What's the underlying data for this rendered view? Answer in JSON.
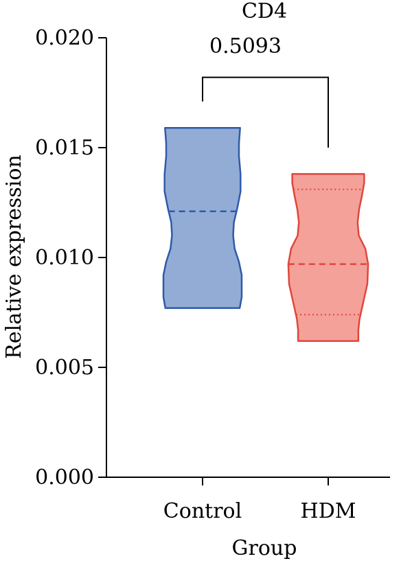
{
  "chart_data": {
    "type": "violin",
    "title": "CD4",
    "xlabel": "Group",
    "ylabel": "Relative expression",
    "ylim": [
      0,
      0.02
    ],
    "yticks": [
      {
        "value": 0.0,
        "label": "0.000"
      },
      {
        "value": 0.005,
        "label": "0.005"
      },
      {
        "value": 0.01,
        "label": "0.010"
      },
      {
        "value": 0.015,
        "label": "0.015"
      },
      {
        "value": 0.02,
        "label": "0.020"
      }
    ],
    "categories": [
      "Control",
      "HDM"
    ],
    "grid": false,
    "series": [
      {
        "category": "Control",
        "fill": "#93acd6",
        "stroke": "#2f5aa8",
        "min": 0.0077,
        "max": 0.0159,
        "median": 0.0121,
        "quartiles": [],
        "profile": [
          [
            0.0077,
            0.95
          ],
          [
            0.0082,
            1.0
          ],
          [
            0.0092,
            1.0
          ],
          [
            0.0098,
            0.93
          ],
          [
            0.0104,
            0.82
          ],
          [
            0.011,
            0.78
          ],
          [
            0.0116,
            0.8
          ],
          [
            0.0122,
            0.88
          ],
          [
            0.013,
            0.97
          ],
          [
            0.0138,
            0.97
          ],
          [
            0.0146,
            0.93
          ],
          [
            0.0152,
            0.93
          ],
          [
            0.0159,
            0.96
          ]
        ]
      },
      {
        "category": "HDM",
        "fill": "#f4a19a",
        "stroke": "#e0463b",
        "min": 0.0062,
        "max": 0.0138,
        "median": 0.0097,
        "quartiles": [
          0.0074,
          0.0131
        ],
        "profile": [
          [
            0.0062,
            0.77
          ],
          [
            0.0067,
            0.77
          ],
          [
            0.0072,
            0.8
          ],
          [
            0.008,
            0.9
          ],
          [
            0.0088,
            1.0
          ],
          [
            0.0097,
            1.02
          ],
          [
            0.0104,
            0.95
          ],
          [
            0.011,
            0.78
          ],
          [
            0.0116,
            0.75
          ],
          [
            0.0122,
            0.79
          ],
          [
            0.0128,
            0.86
          ],
          [
            0.0134,
            0.92
          ],
          [
            0.0138,
            0.92
          ]
        ]
      }
    ],
    "comparison": {
      "groups": [
        "Control",
        "HDM"
      ],
      "label": "0.5093",
      "left_drop_to": 0.0171,
      "right_drop_to": 0.015,
      "bracket_y": 0.0182
    }
  }
}
